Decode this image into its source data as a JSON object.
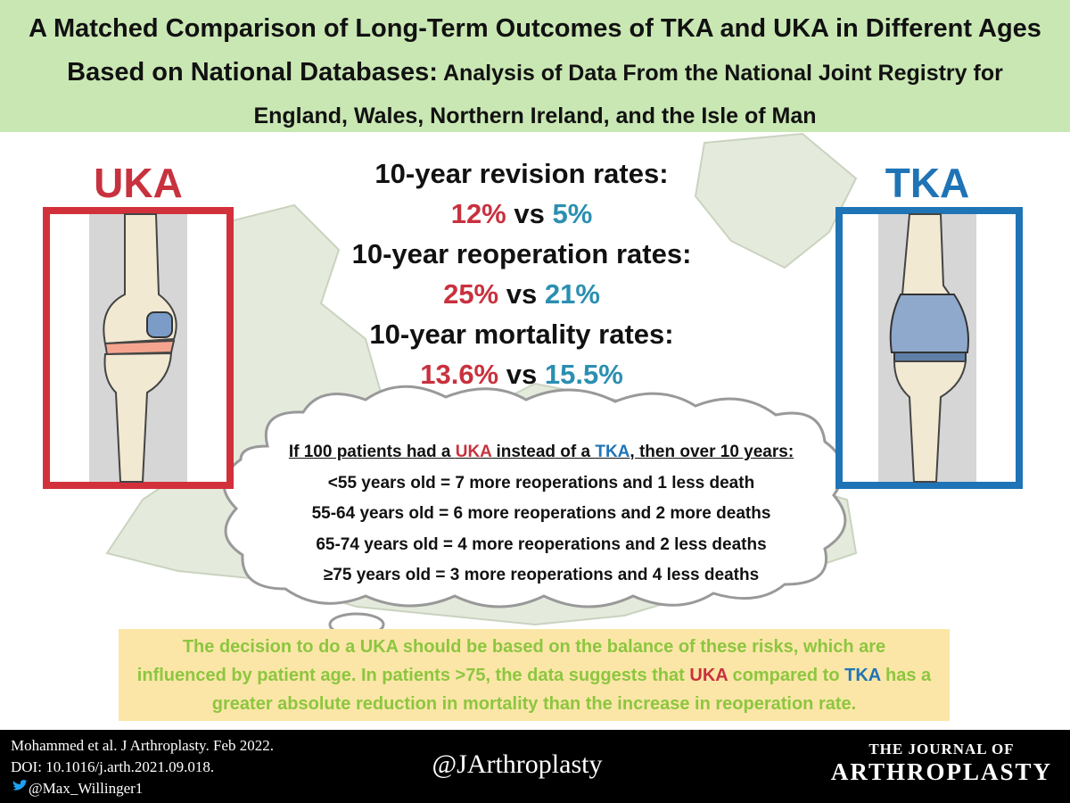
{
  "header": {
    "title_main": "A Matched Comparison of Long-Term Outcomes of TKA and UKA in Different Ages Based on National Databases:",
    "title_sub": " Analysis of Data From the National Joint Registry for England, Wales, Northern Ireland, and the Isle of Man"
  },
  "labels": {
    "left": "UKA",
    "right": "TKA"
  },
  "stats": [
    {
      "heading": "10-year revision rates:",
      "uka": "12%",
      "vs": "vs",
      "tka": "5%"
    },
    {
      "heading": "10-year reoperation rates:",
      "uka": "25%",
      "vs": "vs",
      "tka": "21%"
    },
    {
      "heading": "10-year mortality rates:",
      "uka": "13.6%",
      "vs": "vs",
      "tka": "15.5%"
    }
  ],
  "cloud": {
    "intro": [
      "If 100 patients had a ",
      "UKA",
      " instead of a ",
      "TKA",
      ", then over 10 years:"
    ],
    "rows": [
      "<55 years old = 7 more reoperations and 1 less death",
      "55-64 years old = 6 more reoperations and 2 more deaths",
      "65-74 years old = 4 more reoperations and 2 less deaths",
      "≥75 years old = 3 more reoperations and 4 less deaths"
    ]
  },
  "conclusion": [
    "The decision to do a UKA should be based on the balance of these risks, which are influenced by patient age. In patients >75, the data suggests that ",
    "UKA",
    " compared to ",
    "TKA",
    " has a greater absolute reduction in mortality than the increase in reoperation rate."
  ],
  "footer": {
    "citation": "Mohammed et al. J Arthroplasty. Feb 2022.",
    "doi": "DOI: 10.1016/j.arth.2021.09.018.",
    "author_handle": "@Max_Willinger1",
    "journal_handle": "@JArthroplasty",
    "journal_line1": "THE JOURNAL OF",
    "journal_line2": "ARTHROPLASTY"
  }
}
